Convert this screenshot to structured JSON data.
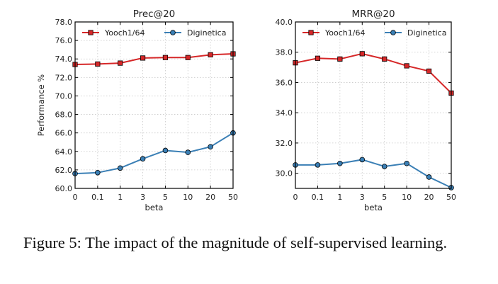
{
  "caption": "Figure 5: The impact of the magnitude of self-supervised learning.",
  "chart_data": [
    {
      "type": "line",
      "title": "Prec@20",
      "xlabel": "beta",
      "ylabel": "Performance %",
      "categories": [
        "0",
        "0.1",
        "1",
        "3",
        "5",
        "10",
        "20",
        "50"
      ],
      "ylim": [
        60.0,
        78.0
      ],
      "yticks": [
        "60.0",
        "62.0",
        "64.0",
        "66.0",
        "68.0",
        "70.0",
        "72.0",
        "74.0",
        "76.0",
        "78.0"
      ],
      "grid": true,
      "legend_position": "top",
      "series": [
        {
          "name": "Yooch1/64",
          "color": "#d62728",
          "marker": "square",
          "values": [
            73.4,
            73.45,
            73.55,
            74.1,
            74.15,
            74.15,
            74.45,
            74.55
          ]
        },
        {
          "name": "Diginetica",
          "color": "#3a7fb5",
          "marker": "circle",
          "values": [
            61.6,
            61.7,
            62.2,
            63.2,
            64.1,
            63.9,
            64.5,
            66.0
          ]
        }
      ]
    },
    {
      "type": "line",
      "title": "MRR@20",
      "xlabel": "beta",
      "ylabel": "",
      "categories": [
        "0",
        "0.1",
        "1",
        "3",
        "5",
        "10",
        "20",
        "50"
      ],
      "ylim": [
        29.0,
        40.0
      ],
      "yticks": [
        "30.0",
        "32.0",
        "34.0",
        "36.0",
        "38.0",
        "40.0"
      ],
      "grid": true,
      "legend_position": "top",
      "series": [
        {
          "name": "Yooch1/64",
          "color": "#d62728",
          "marker": "square",
          "values": [
            37.3,
            37.6,
            37.55,
            37.9,
            37.55,
            37.1,
            36.75,
            35.3
          ]
        },
        {
          "name": "Diginetica",
          "color": "#3a7fb5",
          "marker": "circle",
          "values": [
            30.55,
            30.55,
            30.65,
            30.9,
            30.45,
            30.65,
            29.75,
            29.05
          ]
        }
      ]
    }
  ]
}
